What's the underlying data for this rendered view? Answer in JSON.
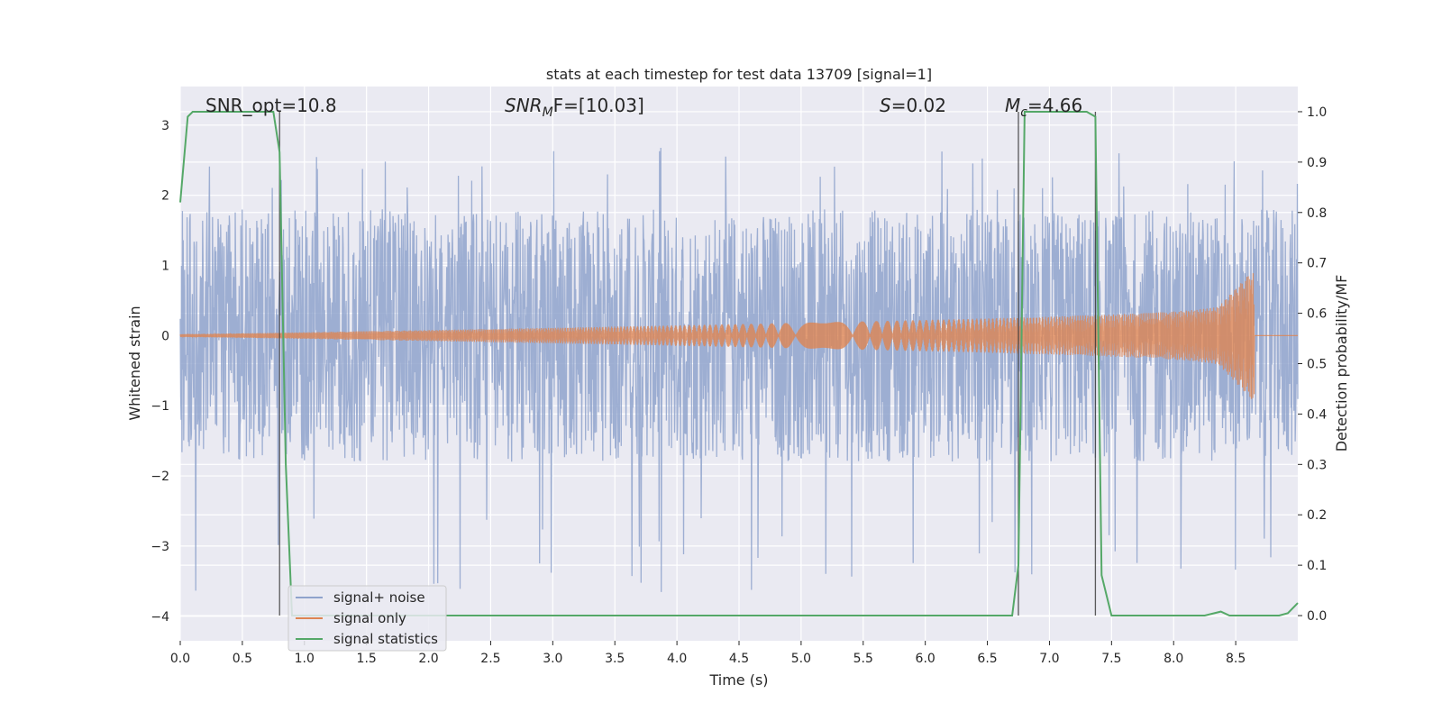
{
  "chart_data": {
    "type": "line",
    "title": "stats at each timestep for test data 13709 [signal=1]",
    "xlabel": "Time (s)",
    "ylabel_left": "Whitened strain",
    "ylabel_right": "Detection probability/MF",
    "xlim": [
      0,
      9
    ],
    "ylim_left": [
      -4.35,
      3.55
    ],
    "ylim_right": [
      -0.05,
      1.05
    ],
    "x_ticks": [
      "0.0",
      "0.5",
      "1.0",
      "1.5",
      "2.0",
      "2.5",
      "3.0",
      "3.5",
      "4.0",
      "4.5",
      "5.0",
      "5.5",
      "6.0",
      "6.5",
      "7.0",
      "7.5",
      "8.0",
      "8.5"
    ],
    "x_tick_values": [
      0,
      0.5,
      1,
      1.5,
      2,
      2.5,
      3,
      3.5,
      4,
      4.5,
      5,
      5.5,
      6,
      6.5,
      7,
      7.5,
      8,
      8.5
    ],
    "y_left_ticks": [
      "−4",
      "−3",
      "−2",
      "−1",
      "0",
      "1",
      "2",
      "3"
    ],
    "y_left_tick_values": [
      -4,
      -3,
      -2,
      -1,
      0,
      1,
      2,
      3
    ],
    "y_right_ticks": [
      "0.0",
      "0.1",
      "0.2",
      "0.3",
      "0.4",
      "0.5",
      "0.6",
      "0.7",
      "0.8",
      "0.9",
      "1.0"
    ],
    "y_right_tick_values": [
      0,
      0.1,
      0.2,
      0.3,
      0.4,
      0.5,
      0.6,
      0.7,
      0.8,
      0.9,
      1.0
    ],
    "grid": true,
    "legend_position": "bottom-left",
    "annotations": {
      "snr_opt": "SNR_opt=10.8",
      "snr_mf_base": "SNR",
      "snr_mf_sub": "M",
      "snr_mf_rest": "F=[10.03]",
      "s_var": "S",
      "s_rest": "=0.02",
      "mc_var": "M",
      "mc_sub": "c",
      "mc_rest": "=4.66"
    },
    "vertical_lines_x": [
      0.8,
      6.75,
      7.37
    ],
    "series": [
      {
        "name": "signal+ noise",
        "color": "#8fa3cc",
        "noise_envelope": {
          "typical_abs": 1.8,
          "max_peak": 2.7,
          "min_peak": -3.7
        }
      },
      {
        "name": "signal only",
        "color": "#dd8452",
        "chirp": {
          "x_start": 0.0,
          "x_end": 8.65,
          "amp_start": 0.0,
          "amp_end": 0.95,
          "amp_at_6_5": 0.2
        }
      },
      {
        "name": "signal statistics",
        "color": "#55a868",
        "axis": "right",
        "x": [
          0.0,
          0.06,
          0.1,
          0.75,
          0.8,
          0.85,
          0.9,
          6.7,
          6.75,
          6.8,
          7.3,
          7.37,
          7.42,
          7.5,
          8.25,
          8.38,
          8.45,
          8.85,
          8.92,
          9.0
        ],
        "y": [
          0.82,
          0.99,
          1.0,
          1.0,
          0.92,
          0.3,
          0.0,
          0.0,
          0.1,
          1.0,
          1.0,
          0.99,
          0.08,
          0.0,
          0.0,
          0.008,
          0.0,
          0.0,
          0.005,
          0.025
        ]
      }
    ]
  }
}
